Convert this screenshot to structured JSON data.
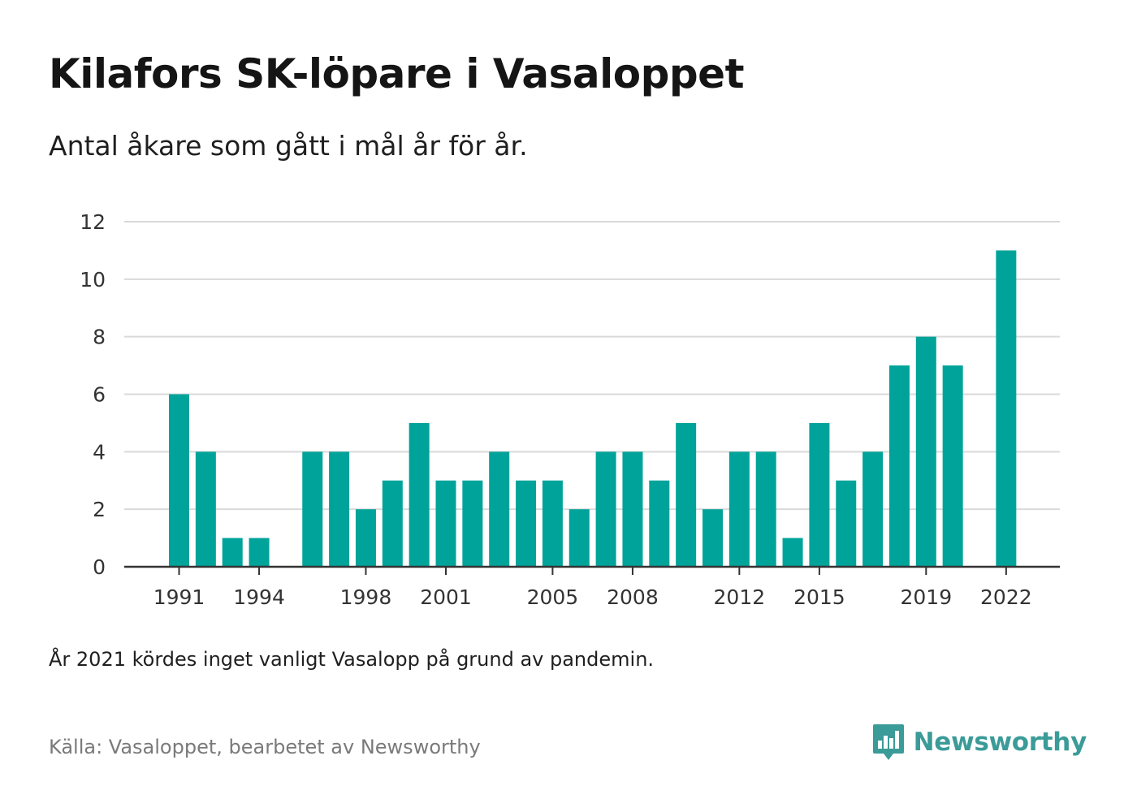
{
  "title": "Kilafors SK-löpare i Vasaloppet",
  "subtitle": "Antal åkare som gått i mål år för år.",
  "note": "År 2021 kördes inget vanligt Vasalopp på grund av pandemin.",
  "source": "Källa: Vasaloppet, bearbetet av Newsworthy",
  "brand": {
    "name": "Newsworthy",
    "icon": "bar-chart-badge-icon",
    "color": "#3b9b98"
  },
  "colors": {
    "bar": "#00a39a",
    "grid": "#d9d9d9",
    "axis": "#333333"
  },
  "chart_data": {
    "type": "bar",
    "categories": [
      "1991",
      "1992",
      "1993",
      "1994",
      "1995",
      "1996",
      "1997",
      "1998",
      "1999",
      "2000",
      "2001",
      "2002",
      "2003",
      "2004",
      "2005",
      "2006",
      "2007",
      "2008",
      "2009",
      "2010",
      "2011",
      "2012",
      "2013",
      "2014",
      "2015",
      "2016",
      "2017",
      "2018",
      "2019",
      "2020",
      "2021",
      "2022"
    ],
    "values": [
      6,
      4,
      1,
      1,
      null,
      4,
      4,
      2,
      3,
      5,
      3,
      3,
      4,
      3,
      3,
      2,
      4,
      4,
      3,
      5,
      2,
      4,
      4,
      1,
      5,
      3,
      4,
      7,
      8,
      7,
      null,
      11
    ],
    "xtick_labels": [
      "1991",
      "1994",
      "1998",
      "2001",
      "2005",
      "2008",
      "2012",
      "2015",
      "2019",
      "2022"
    ],
    "ytick_labels": [
      "0",
      "2",
      "4",
      "6",
      "8",
      "10",
      "12"
    ],
    "ylim": [
      0,
      12
    ],
    "title": "Kilafors SK-löpare i Vasaloppet",
    "subtitle": "Antal åkare som gått i mål år för år.",
    "xlabel": "",
    "ylabel": "",
    "grid": true,
    "legend": "none"
  }
}
